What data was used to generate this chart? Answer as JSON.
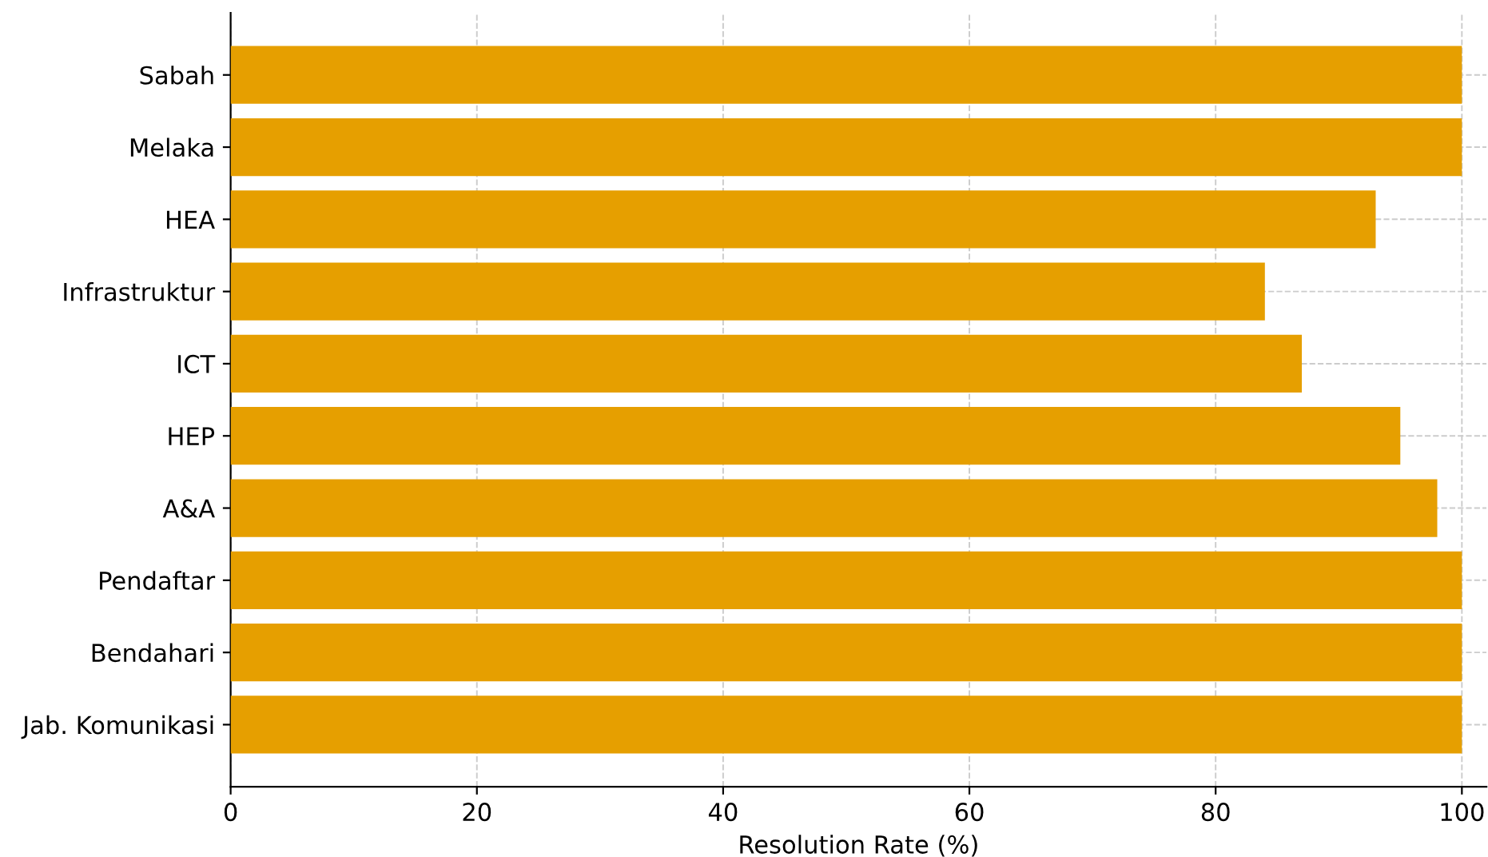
{
  "chart_data": {
    "type": "bar",
    "orientation": "horizontal",
    "xlabel": "Resolution Rate (%)",
    "categories": [
      "Sabah",
      "Melaka",
      "HEA",
      "Infrastruktur",
      "ICT",
      "HEP",
      "A&A",
      "Pendaftar",
      "Bendahari",
      "Jab. Komunikasi"
    ],
    "values": [
      100,
      100,
      93,
      84,
      87,
      95,
      98,
      100,
      100,
      100
    ],
    "color": "#e69f00",
    "xlim": [
      0,
      102
    ],
    "xticks": [
      0,
      20,
      40,
      60,
      80,
      100
    ],
    "grid": true
  }
}
